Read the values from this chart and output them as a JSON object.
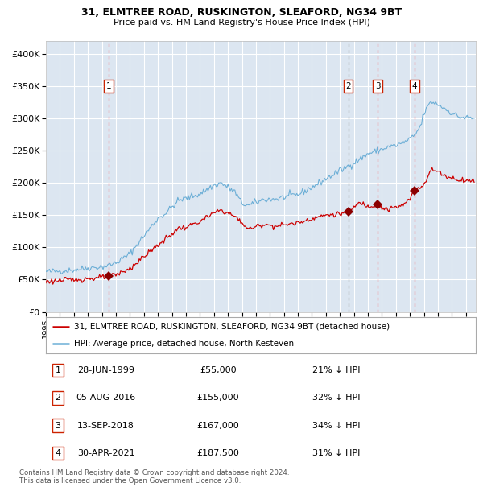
{
  "title_line1": "31, ELMTREE ROAD, RUSKINGTON, SLEAFORD, NG34 9BT",
  "title_line2": "Price paid vs. HM Land Registry's House Price Index (HPI)",
  "fig_bg_color": "#ffffff",
  "plot_bg_color": "#dce6f1",
  "ylim": [
    0,
    420000
  ],
  "yticks": [
    0,
    50000,
    100000,
    150000,
    200000,
    250000,
    300000,
    350000,
    400000
  ],
  "ytick_labels": [
    "£0",
    "£50K",
    "£100K",
    "£150K",
    "£200K",
    "£250K",
    "£300K",
    "£350K",
    "£400K"
  ],
  "xlim_start": 1995.0,
  "xlim_end": 2025.7,
  "hpi_color": "#6baed6",
  "price_color": "#cc0000",
  "sale_marker_color": "#8b0000",
  "vline_color_red": "#ff6666",
  "vline_color_dash": "#999999",
  "legend_line1": "31, ELMTREE ROAD, RUSKINGTON, SLEAFORD, NG34 9BT (detached house)",
  "legend_line2": "HPI: Average price, detached house, North Kesteven",
  "sales": [
    {
      "num": 1,
      "year": 1999.49,
      "price": 55000,
      "vline_style": "red"
    },
    {
      "num": 2,
      "year": 2016.59,
      "price": 155000,
      "vline_style": "dash"
    },
    {
      "num": 3,
      "year": 2018.7,
      "price": 167000,
      "vline_style": "red"
    },
    {
      "num": 4,
      "year": 2021.33,
      "price": 187500,
      "vline_style": "red"
    }
  ],
  "table_rows": [
    {
      "num": 1,
      "date": "28-JUN-1999",
      "price": "£55,000",
      "pct": "21% ↓ HPI"
    },
    {
      "num": 2,
      "date": "05-AUG-2016",
      "price": "£155,000",
      "pct": "32% ↓ HPI"
    },
    {
      "num": 3,
      "date": "13-SEP-2018",
      "price": "£167,000",
      "pct": "34% ↓ HPI"
    },
    {
      "num": 4,
      "date": "30-APR-2021",
      "price": "£187,500",
      "pct": "31% ↓ HPI"
    }
  ],
  "footnote": "Contains HM Land Registry data © Crown copyright and database right 2024.\nThis data is licensed under the Open Government Licence v3.0."
}
